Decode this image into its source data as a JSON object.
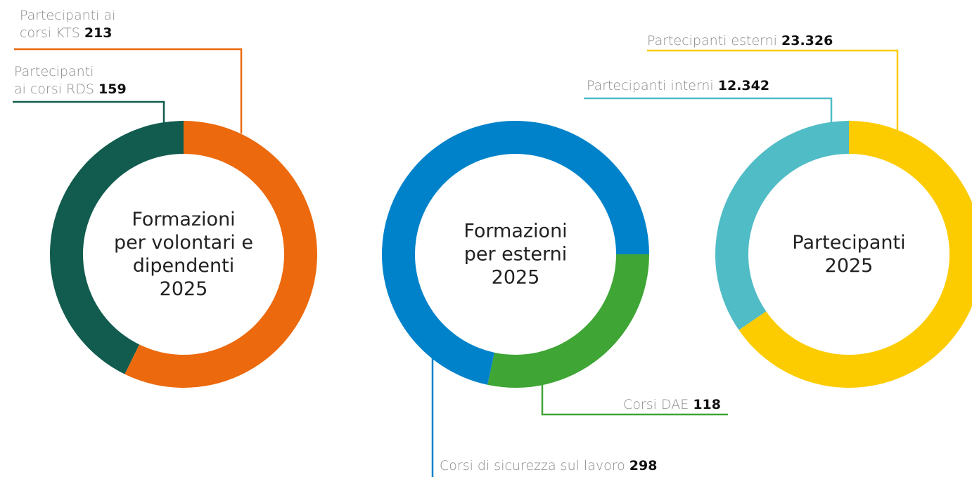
{
  "chart_data": [
    {
      "type": "donut",
      "title": "Formazioni\nper volontari e\ndipendenti\n2025",
      "categories": [
        "Partecipanti ai\ncorsi KTS",
        "Partecipanti\nai corsi RDS"
      ],
      "values": [
        213,
        159
      ],
      "colors": [
        "#ec690d",
        "#115c4e"
      ]
    },
    {
      "type": "donut",
      "title": "Formazioni\nper esterni\n2025",
      "categories": [
        "Corsi DAE",
        "Corsi di sicurezza sul lavoro"
      ],
      "values": [
        118,
        298
      ],
      "colors": [
        "#3fa535",
        "#0082ca"
      ]
    },
    {
      "type": "donut",
      "title": "Partecipanti\n2025",
      "categories": [
        "Partecipanti esterni",
        "Partecipanti interni"
      ],
      "values": [
        23326,
        12342
      ],
      "value_labels": [
        "23.326",
        "12.342"
      ],
      "colors": [
        "#fccc00",
        "#50bcc6"
      ]
    }
  ]
}
